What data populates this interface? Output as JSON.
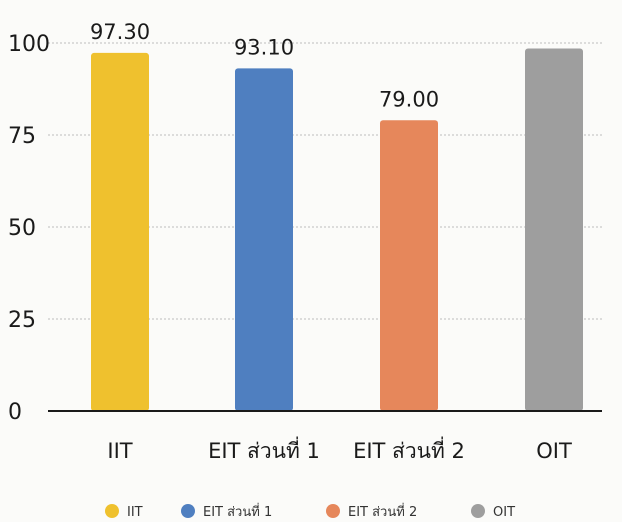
{
  "chart_data": {
    "type": "bar",
    "categories": [
      "IIT",
      "EIT ส่วนที่ 1",
      "EIT ส่วนที่ 2",
      "OIT"
    ],
    "values": [
      97.3,
      93.1,
      79.0,
      98.5
    ],
    "data_labels": [
      "97.30",
      "93.10",
      "79.00",
      ""
    ],
    "colors": [
      "#efc12e",
      "#4f7fc0",
      "#e6875b",
      "#9e9e9e"
    ],
    "ylim": [
      0,
      100
    ],
    "yticks": [
      0,
      25,
      50,
      75,
      100
    ],
    "grid": true,
    "legend": {
      "position": "bottom",
      "entries": [
        "IIT",
        "EIT ส่วนที่ 1",
        "EIT ส่วนที่ 2",
        "OIT"
      ]
    }
  }
}
